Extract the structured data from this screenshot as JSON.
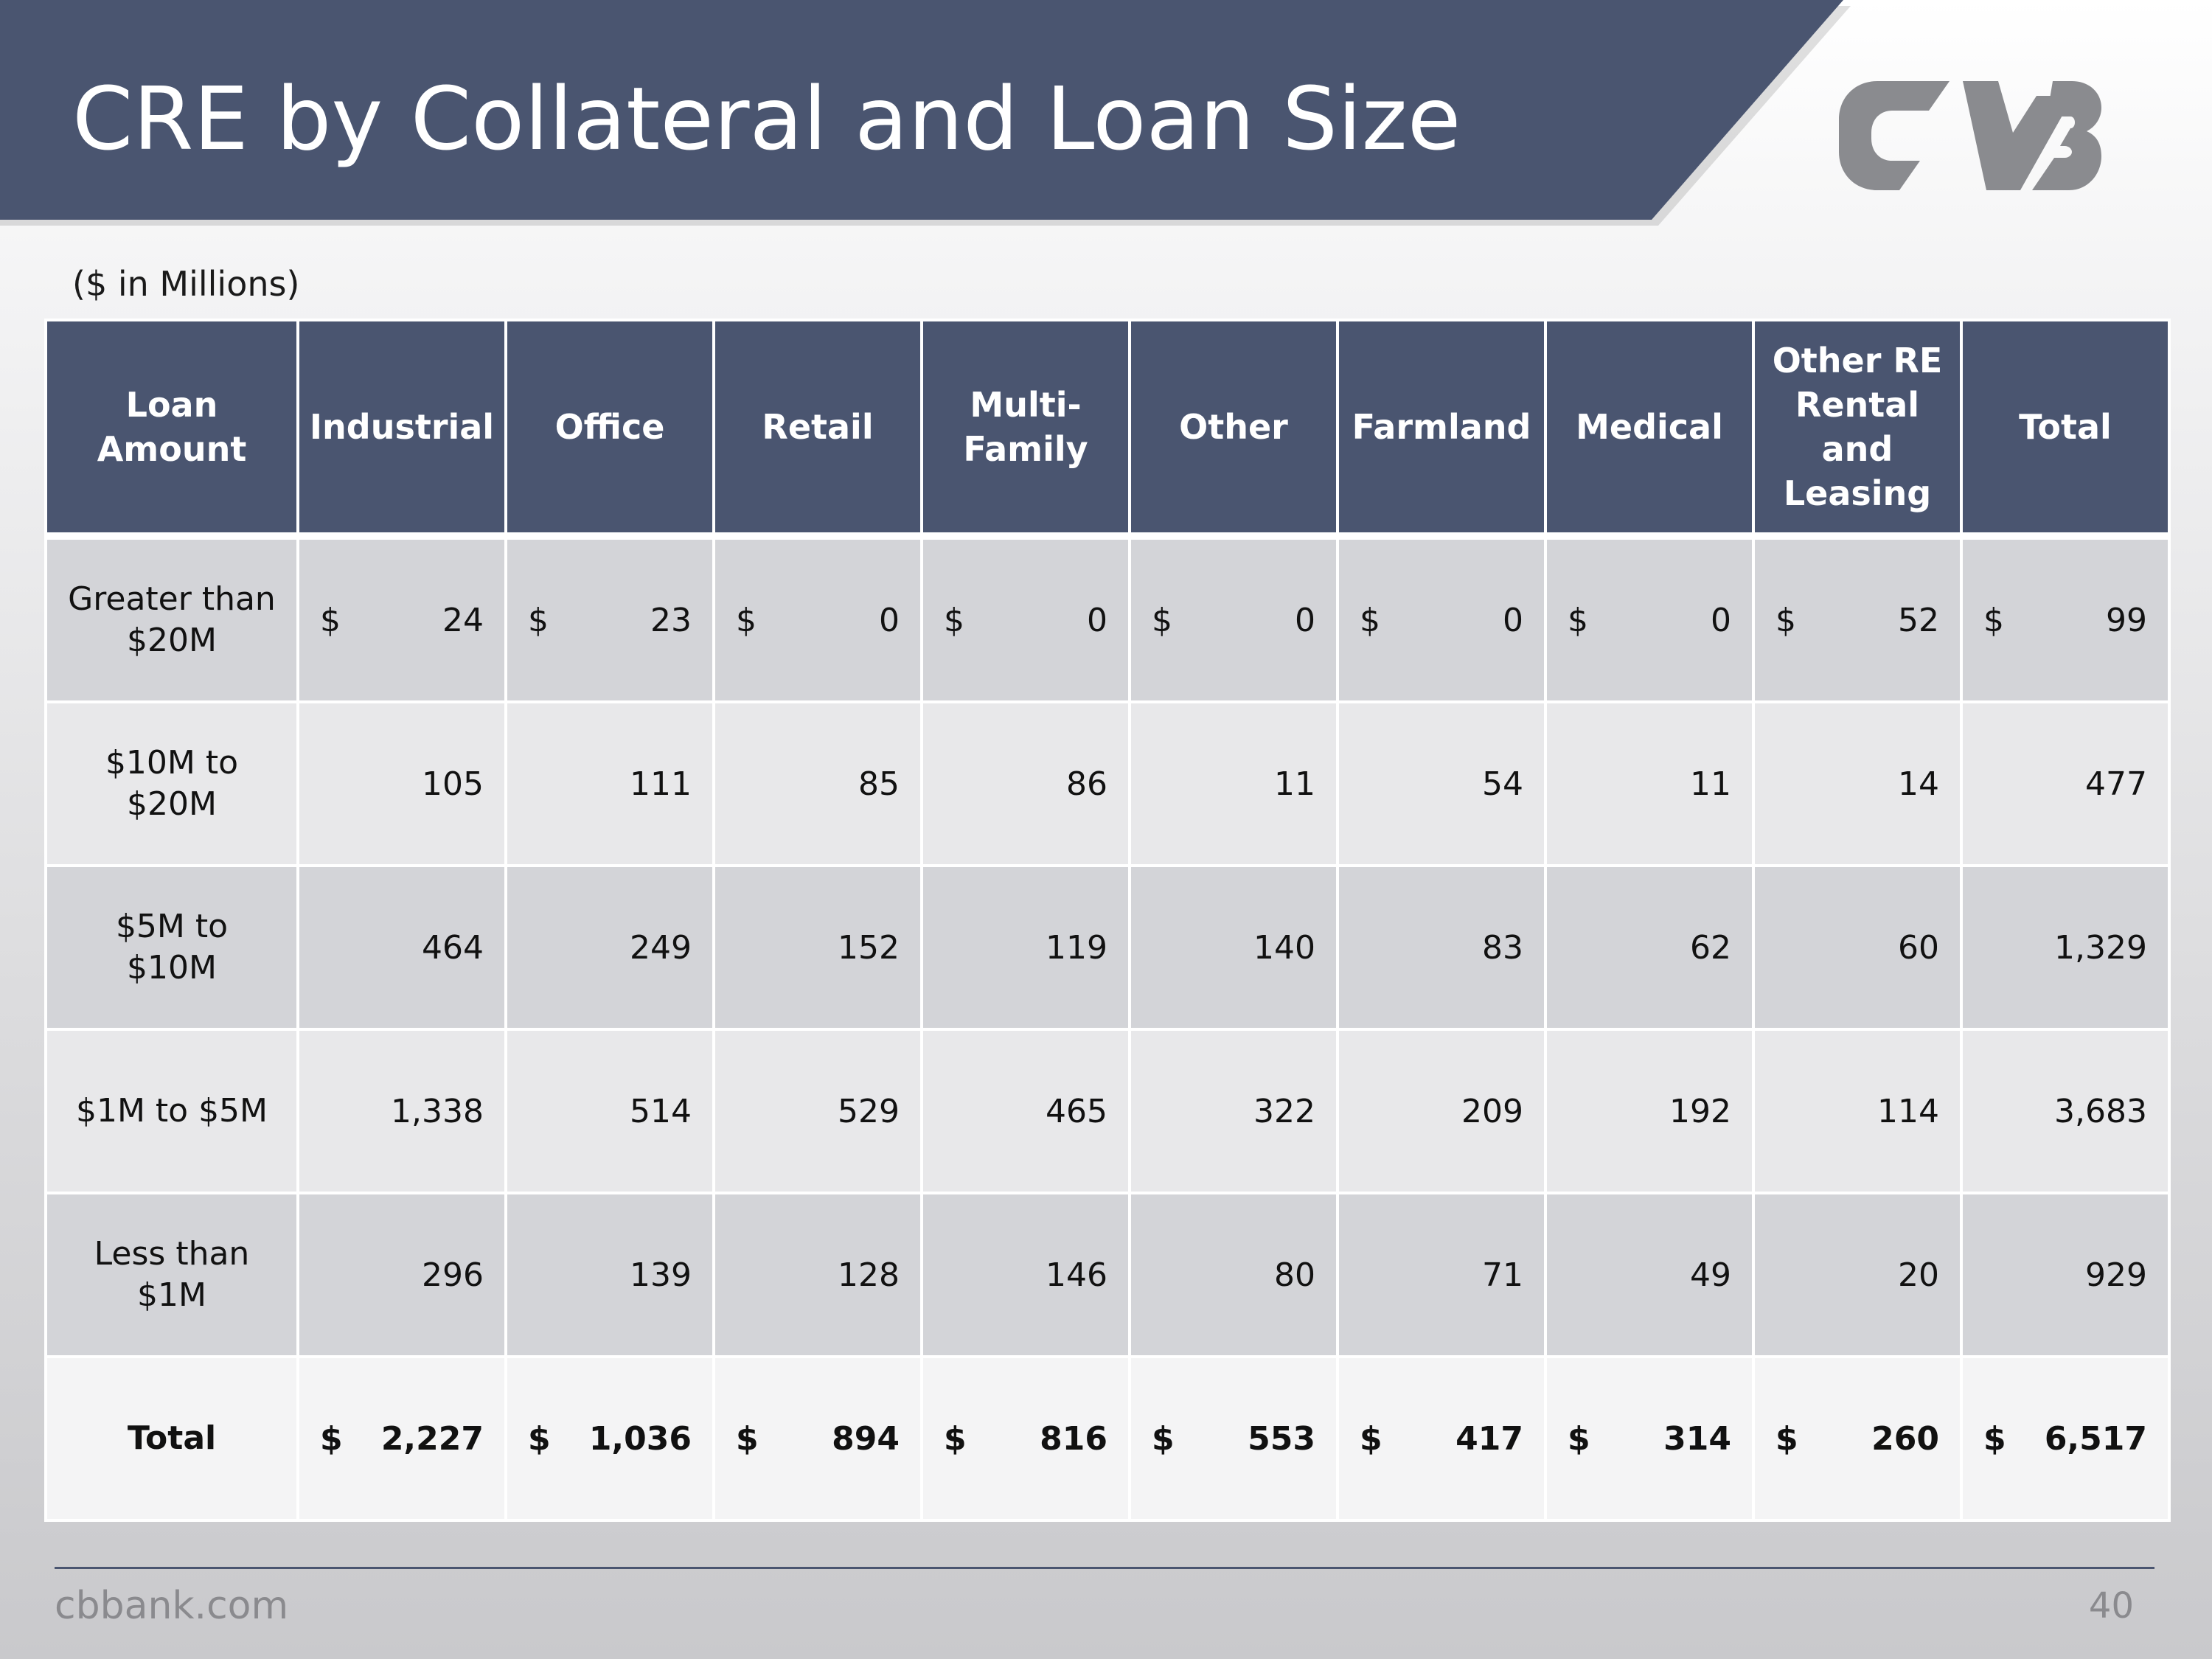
{
  "slide": {
    "title": "CRE by Collateral and Loan Size",
    "units_note": "($ in Millions)",
    "footer_url": "cbbank.com",
    "page_number": "40",
    "logo_icon": "cvb-logo-icon",
    "accent_color": "#4a5570"
  },
  "table": {
    "headers": [
      "Loan Amount",
      "Industrial",
      "Office",
      "Retail",
      "Multi-Family",
      "Other",
      "Farmland",
      "Medical",
      "Other RE Rental and Leasing",
      "Total"
    ],
    "rows": [
      {
        "label": "Greater than $20M",
        "currency": "$",
        "values": [
          "24",
          "23",
          "0",
          "0",
          "0",
          "0",
          "0",
          "52",
          "99"
        ]
      },
      {
        "label": "$10M to $20M",
        "currency": "",
        "values": [
          "105",
          "111",
          "85",
          "86",
          "11",
          "54",
          "11",
          "14",
          "477"
        ]
      },
      {
        "label": "$5M to $10M",
        "currency": "",
        "values": [
          "464",
          "249",
          "152",
          "119",
          "140",
          "83",
          "62",
          "60",
          "1,329"
        ]
      },
      {
        "label": "$1M to $5M",
        "currency": "",
        "values": [
          "1,338",
          "514",
          "529",
          "465",
          "322",
          "209",
          "192",
          "114",
          "3,683"
        ]
      },
      {
        "label": "Less than $1M",
        "currency": "",
        "values": [
          "296",
          "139",
          "128",
          "146",
          "80",
          "71",
          "49",
          "20",
          "929"
        ]
      }
    ],
    "total": {
      "label": "Total",
      "currency": "$",
      "values": [
        "2,227",
        "1,036",
        "894",
        "816",
        "553",
        "417",
        "314",
        "260",
        "6,517"
      ]
    }
  }
}
